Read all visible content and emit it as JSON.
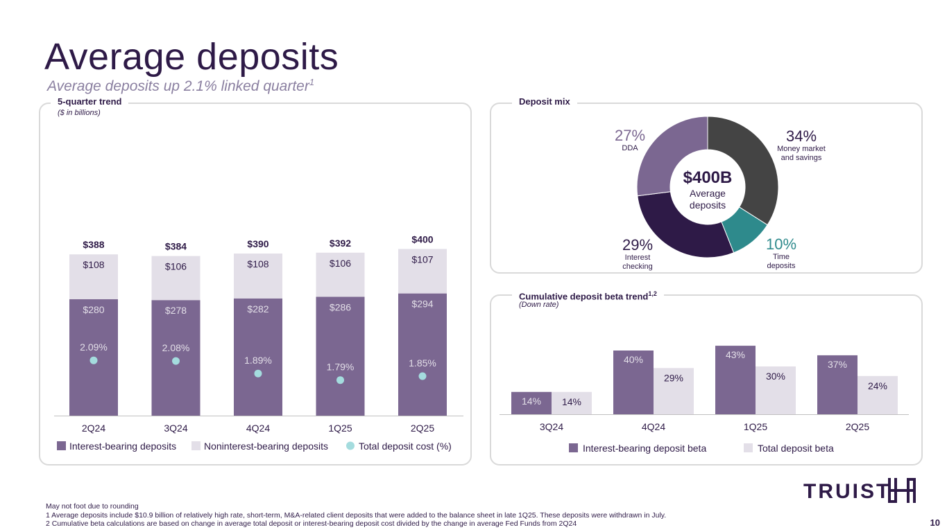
{
  "header": {
    "title": "Average deposits",
    "subtitle": "Average deposits up 2.1% linked quarter",
    "subtitle_sup": "1"
  },
  "trend_panel": {
    "label": "5-quarter trend",
    "sub": "($ in billions)"
  },
  "mix_panel": {
    "label": "Deposit mix"
  },
  "beta_panel": {
    "label": "Cumulative deposit beta trend",
    "label_sup": "1,2",
    "sub": "(Down rate)"
  },
  "chart_data": [
    {
      "type": "bar",
      "stacked": true,
      "title": "5-quarter trend",
      "unit": "$ in billions",
      "categories": [
        "2Q24",
        "3Q24",
        "4Q24",
        "1Q25",
        "2Q25"
      ],
      "series": [
        {
          "name": "Interest-bearing deposits",
          "values": [
            280,
            278,
            282,
            286,
            294
          ],
          "labels": [
            "$280",
            "$278",
            "$282",
            "$286",
            "$294"
          ],
          "color": "#7b6791"
        },
        {
          "name": "Noninterest-bearing deposits",
          "values": [
            108,
            106,
            108,
            106,
            107
          ],
          "labels": [
            "$108",
            "$106",
            "$108",
            "$106",
            "$107"
          ],
          "color": "#e3dfe8"
        }
      ],
      "totals": [
        388,
        384,
        390,
        392,
        400
      ],
      "total_labels": [
        "$388",
        "$384",
        "$390",
        "$392",
        "$400"
      ],
      "overlay": {
        "name": "Total deposit cost (%)",
        "values": [
          2.09,
          2.08,
          1.89,
          1.79,
          1.85
        ],
        "labels": [
          "2.09%",
          "2.08%",
          "1.89%",
          "1.79%",
          "1.85%"
        ],
        "color": "#a4dcde"
      },
      "legend": [
        "Interest-bearing deposits",
        "Noninterest-bearing deposits",
        "Total deposit cost (%)"
      ]
    },
    {
      "type": "pie",
      "title": "Deposit mix",
      "center_value": "$400B",
      "center_label": "Average deposits",
      "slices": [
        {
          "name": "Money market and savings",
          "value": 34,
          "pct_label": "34%",
          "color": "#444444",
          "label_color": "#2e1a47"
        },
        {
          "name": "Time deposits",
          "value": 10,
          "pct_label": "10%",
          "color": "#2e8a8c",
          "label_color": "#2e8a8c"
        },
        {
          "name": "Interest checking",
          "value": 29,
          "pct_label": "29%",
          "color": "#2e1a47",
          "label_color": "#2e1a47"
        },
        {
          "name": "DDA",
          "value": 27,
          "pct_label": "27%",
          "color": "#7b6791",
          "label_color": "#7b6791"
        }
      ],
      "slice_caption_lines": [
        [
          "Money market",
          "and savings"
        ],
        [
          "Time",
          "deposits"
        ],
        [
          "Interest",
          "checking"
        ],
        [
          "DDA"
        ]
      ]
    },
    {
      "type": "bar",
      "title": "Cumulative deposit beta trend",
      "subtitle": "(Down rate)",
      "categories": [
        "3Q24",
        "4Q24",
        "1Q25",
        "2Q25"
      ],
      "series": [
        {
          "name": "Interest-bearing deposit beta",
          "values": [
            14,
            40,
            43,
            37
          ],
          "labels": [
            "14%",
            "40%",
            "43%",
            "37%"
          ],
          "color": "#7b6791"
        },
        {
          "name": "Total deposit beta",
          "values": [
            14,
            29,
            30,
            24
          ],
          "labels": [
            "14%",
            "29%",
            "30%",
            "24%"
          ],
          "color": "#e3dfe8"
        }
      ],
      "ylim": [
        0,
        50
      ],
      "legend": [
        "Interest-bearing deposit beta",
        "Total deposit beta"
      ]
    }
  ],
  "footer": {
    "notes": [
      "May not foot due to rounding",
      "1 Average deposits include $10.9 billion of relatively high rate, short-term, M&A-related client deposits that were added to the balance sheet in late 1Q25.  These deposits were withdrawn in July.",
      "2 Cumulative beta calculations are based on change in average total deposit or interest-bearing deposit cost divided by the change in average Fed Funds from 2Q24"
    ],
    "page": "10",
    "logo_text": "TRUIST"
  }
}
